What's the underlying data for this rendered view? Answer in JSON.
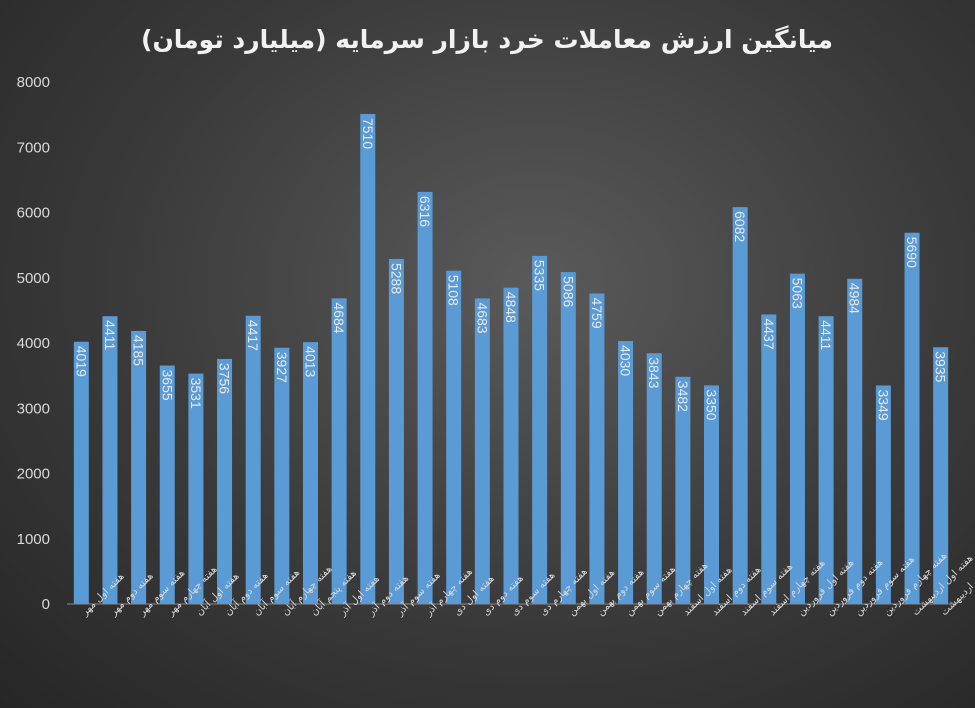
{
  "chart_data": {
    "type": "bar",
    "title": "میانگین ارزش معاملات خرد بازار سرمایه (میلیارد تومان)",
    "xlabel": "",
    "ylabel": "",
    "ylim": [
      0,
      8000
    ],
    "yticks": [
      0,
      1000,
      2000,
      3000,
      4000,
      5000,
      6000,
      7000,
      8000
    ],
    "grid": false,
    "bar_color": "#5b9bd5",
    "categories": [
      "هفته اول مهر",
      "هفته دوم مهر",
      "هفته سوم مهر",
      "هفته چهارم مهر",
      "هفته اول آبان",
      "هفته دوم آبان",
      "هفته سوم آبان",
      "هفته چهارم آبان",
      "هفته پنجم آبان",
      "هفته اول آذر",
      "هفته دوم آذر",
      "هفته سوم آذر",
      "هفته چهارم آذر",
      "هفته اول دی",
      "هفته دوم دی",
      "هفته سوم دی",
      "هفته چهارم دی",
      "هفته اول بهمن",
      "هفته دوم بهمن",
      "هفته سوم بهمن",
      "هفته چهارم بهمن",
      "هفته اول اسفند",
      "هفته دوم اسفند",
      "هفته سوم اسفند",
      "هفته چهارم اسفند",
      "هفته اول فروردین",
      "هفته دوم فروردین",
      "هفته سوم فروردین",
      "هفته چهارم فروردین",
      "هفته اول اردیبهشت",
      "هفته دوم اردیبهشت"
    ],
    "values": [
      4019,
      4411,
      4185,
      3655,
      3531,
      3756,
      4417,
      3927,
      4013,
      4684,
      7510,
      5288,
      6316,
      5108,
      4683,
      4848,
      5335,
      5086,
      4759,
      4030,
      3843,
      3482,
      3350,
      6082,
      4437,
      5063,
      4411,
      4984,
      3349,
      5690,
      3935
    ]
  }
}
